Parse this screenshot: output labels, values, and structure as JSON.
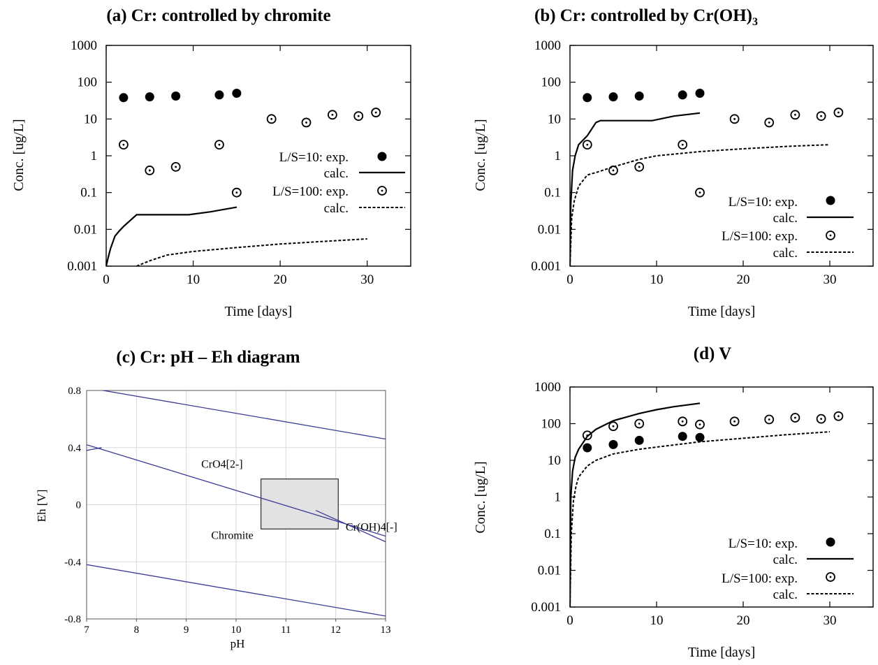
{
  "colors": {
    "axis": "#000000",
    "series": "#000000",
    "ph_grid": "#d9d9d9",
    "ph_line": "#3b3b98",
    "ph_box_fill": "#e2e2e2",
    "ph_box_stroke": "#000000"
  },
  "chart_data": [
    {
      "id": "a",
      "type": "scatter",
      "title": "(a) Cr: controlled by chromite",
      "xlabel": "Time [days]",
      "ylabel": "Conc. [ug/L]",
      "xlim": [
        0,
        35
      ],
      "ylim": [
        0.001,
        1000
      ],
      "yscale": "log",
      "x_ticks": [
        0,
        10,
        20,
        30
      ],
      "x_tick_labels": [
        "0",
        "10",
        "20",
        "30"
      ],
      "y_ticks": [
        0.001,
        0.01,
        0.1,
        1,
        10,
        100,
        1000
      ],
      "y_tick_labels": [
        "0.001",
        "0.01",
        "0.1",
        "1",
        "10",
        "100",
        "1000"
      ],
      "legend_position": "right",
      "legend": [
        {
          "label": "L/S=10: exp.",
          "series": "exp10"
        },
        {
          "label": "calc.",
          "series": "calc10"
        },
        {
          "label": "L/S=100: exp.",
          "series": "exp100"
        },
        {
          "label": "calc.",
          "series": "calc100"
        }
      ],
      "series": [
        {
          "id": "exp10",
          "style": "filled",
          "points": [
            [
              2,
              38
            ],
            [
              5,
              40
            ],
            [
              8,
              42
            ],
            [
              13,
              45
            ],
            [
              15,
              50
            ]
          ]
        },
        {
          "id": "exp100",
          "style": "dotcircle",
          "points": [
            [
              2,
              2
            ],
            [
              5,
              0.4
            ],
            [
              8,
              0.5
            ],
            [
              13,
              2
            ],
            [
              15,
              0.1
            ],
            [
              19,
              10
            ],
            [
              23,
              8
            ],
            [
              26,
              13
            ],
            [
              29,
              12
            ],
            [
              31,
              15
            ]
          ]
        },
        {
          "id": "calc10",
          "style": "solid",
          "points": [
            [
              0,
              0.001
            ],
            [
              0.2,
              0.0016
            ],
            [
              0.5,
              0.003
            ],
            [
              1,
              0.0065
            ],
            [
              1.5,
              0.009
            ],
            [
              2,
              0.012
            ],
            [
              3.5,
              0.025
            ],
            [
              9.5,
              0.025
            ],
            [
              12,
              0.03
            ],
            [
              15,
              0.04
            ]
          ]
        },
        {
          "id": "calc100",
          "style": "dashed",
          "points": [
            [
              3.5,
              0.001
            ],
            [
              5,
              0.0014
            ],
            [
              7,
              0.002
            ],
            [
              10,
              0.0025
            ],
            [
              15,
              0.0032
            ],
            [
              20,
              0.004
            ],
            [
              25,
              0.0047
            ],
            [
              30,
              0.0055
            ]
          ]
        }
      ]
    },
    {
      "id": "b",
      "type": "scatter",
      "title": "(b) Cr: controlled by Cr(OH)",
      "title_sub": "3",
      "xlabel": "Time [days]",
      "ylabel": "Conc. [ug/L]",
      "xlim": [
        0,
        35
      ],
      "ylim": [
        0.001,
        1000
      ],
      "yscale": "log",
      "x_ticks": [
        0,
        10,
        20,
        30
      ],
      "x_tick_labels": [
        "0",
        "10",
        "20",
        "30"
      ],
      "y_ticks": [
        0.001,
        0.01,
        0.1,
        1,
        10,
        100,
        1000
      ],
      "y_tick_labels": [
        "0.001",
        "0.01",
        "0.1",
        "1",
        "10",
        "100",
        "1000"
      ],
      "legend_position": "bottom-right",
      "legend": [
        {
          "label": "L/S=10: exp.",
          "series": "exp10"
        },
        {
          "label": "calc.",
          "series": "calc10"
        },
        {
          "label": "L/S=100: exp.",
          "series": "exp100"
        },
        {
          "label": "calc.",
          "series": "calc100"
        }
      ],
      "series": [
        {
          "id": "exp10",
          "style": "filled",
          "points": [
            [
              2,
              38
            ],
            [
              5,
              40
            ],
            [
              8,
              42
            ],
            [
              13,
              45
            ],
            [
              15,
              50
            ]
          ]
        },
        {
          "id": "exp100",
          "style": "dotcircle",
          "points": [
            [
              2,
              2
            ],
            [
              5,
              0.4
            ],
            [
              8,
              0.5
            ],
            [
              13,
              2
            ],
            [
              15,
              0.1
            ],
            [
              19,
              10
            ],
            [
              23,
              8
            ],
            [
              26,
              13
            ],
            [
              29,
              12
            ],
            [
              31,
              15
            ]
          ]
        },
        {
          "id": "calc10",
          "style": "solid",
          "points": [
            [
              0,
              0.001
            ],
            [
              0.1,
              0.05
            ],
            [
              0.3,
              0.4
            ],
            [
              0.6,
              1
            ],
            [
              1,
              2
            ],
            [
              2,
              3.5
            ],
            [
              3,
              8
            ],
            [
              3.5,
              9
            ],
            [
              9.5,
              9
            ],
            [
              12,
              12
            ],
            [
              15,
              14.5
            ]
          ]
        },
        {
          "id": "calc100",
          "style": "dashed",
          "points": [
            [
              0,
              0.001
            ],
            [
              0.2,
              0.02
            ],
            [
              0.5,
              0.06
            ],
            [
              1,
              0.15
            ],
            [
              2,
              0.3
            ],
            [
              3,
              0.35
            ],
            [
              5,
              0.5
            ],
            [
              8,
              0.8
            ],
            [
              10,
              1
            ],
            [
              15,
              1.3
            ],
            [
              20,
              1.55
            ],
            [
              25,
              1.8
            ],
            [
              30,
              2
            ]
          ]
        }
      ]
    },
    {
      "id": "c",
      "type": "line",
      "title": "(c) Cr: pH – Eh diagram",
      "xlabel": "pH",
      "ylabel": "Eh [V]",
      "xlim": [
        7,
        13
      ],
      "ylim": [
        -0.8,
        0.8
      ],
      "grid": true,
      "x_ticks": [
        7,
        8,
        9,
        10,
        11,
        12,
        13
      ],
      "x_tick_labels": [
        "7",
        "8",
        "9",
        "10",
        "11",
        "12",
        "13"
      ],
      "y_ticks": [
        -0.8,
        -0.4,
        0,
        0.4,
        0.8
      ],
      "y_tick_labels": [
        "-0.8",
        "-0.4",
        "0",
        "0.4",
        "0.8"
      ],
      "boundaries": [
        {
          "points": [
            [
              7,
              0.82
            ],
            [
              13,
              0.46
            ]
          ]
        },
        {
          "points": [
            [
              7,
              0.42
            ],
            [
              13,
              -0.22
            ]
          ]
        },
        {
          "points": [
            [
              7,
              0.38
            ],
            [
              7.3,
              0.4
            ]
          ]
        },
        {
          "points": [
            [
              11.6,
              -0.04
            ],
            [
              13,
              -0.26
            ]
          ]
        },
        {
          "points": [
            [
              7,
              -0.42
            ],
            [
              13,
              -0.78
            ]
          ]
        }
      ],
      "box": {
        "x": [
          10.5,
          12.05
        ],
        "y": [
          -0.17,
          0.18
        ]
      },
      "regions": [
        {
          "label": "CrO4[2-]",
          "x": 9.3,
          "y": 0.26
        },
        {
          "label": "Chromite",
          "x": 9.5,
          "y": -0.24
        },
        {
          "label": "Cr(OH)4[-]",
          "x": 12.2,
          "y": -0.18
        }
      ]
    },
    {
      "id": "d",
      "type": "scatter",
      "title": "(d) V",
      "xlabel": "Time [days]",
      "ylabel": "Conc. [ug/L]",
      "xlim": [
        0,
        35
      ],
      "ylim": [
        0.001,
        1000
      ],
      "yscale": "log",
      "x_ticks": [
        0,
        10,
        20,
        30
      ],
      "x_tick_labels": [
        "0",
        "10",
        "20",
        "30"
      ],
      "y_ticks": [
        0.001,
        0.01,
        0.1,
        1,
        10,
        100,
        1000
      ],
      "y_tick_labels": [
        "0.001",
        "0.01",
        "0.1",
        "1",
        "10",
        "100",
        "1000"
      ],
      "legend_position": "bottom-right",
      "legend": [
        {
          "label": "L/S=10: exp.",
          "series": "exp10"
        },
        {
          "label": "calc.",
          "series": "calc10"
        },
        {
          "label": "L/S=100: exp.",
          "series": "exp100"
        },
        {
          "label": "calc.",
          "series": "calc100"
        }
      ],
      "series": [
        {
          "id": "exp10",
          "style": "filled",
          "points": [
            [
              2,
              22
            ],
            [
              5,
              27
            ],
            [
              8,
              35
            ],
            [
              13,
              45
            ],
            [
              15,
              42
            ]
          ]
        },
        {
          "id": "exp100",
          "style": "dotcircle",
          "points": [
            [
              2,
              48
            ],
            [
              5,
              85
            ],
            [
              8,
              100
            ],
            [
              13,
              115
            ],
            [
              15,
              95
            ],
            [
              19,
              115
            ],
            [
              23,
              130
            ],
            [
              26,
              145
            ],
            [
              29,
              135
            ],
            [
              31,
              160
            ]
          ]
        },
        {
          "id": "calc10",
          "style": "solid",
          "points": [
            [
              0,
              0.001
            ],
            [
              0.1,
              1
            ],
            [
              0.3,
              5
            ],
            [
              0.6,
              12
            ],
            [
              1,
              20
            ],
            [
              2,
              45
            ],
            [
              3,
              70
            ],
            [
              5,
              120
            ],
            [
              8,
              190
            ],
            [
              10,
              240
            ],
            [
              12,
              290
            ],
            [
              15,
              360
            ]
          ]
        },
        {
          "id": "calc100",
          "style": "dashed",
          "points": [
            [
              0,
              0.001
            ],
            [
              0.15,
              0.1
            ],
            [
              0.4,
              0.8
            ],
            [
              0.7,
              2
            ],
            [
              1,
              3.5
            ],
            [
              2,
              7
            ],
            [
              3,
              10
            ],
            [
              5,
              15
            ],
            [
              8,
              20
            ],
            [
              10,
              23
            ],
            [
              15,
              32
            ],
            [
              20,
              40
            ],
            [
              25,
              50
            ],
            [
              30,
              60
            ]
          ]
        }
      ]
    }
  ]
}
